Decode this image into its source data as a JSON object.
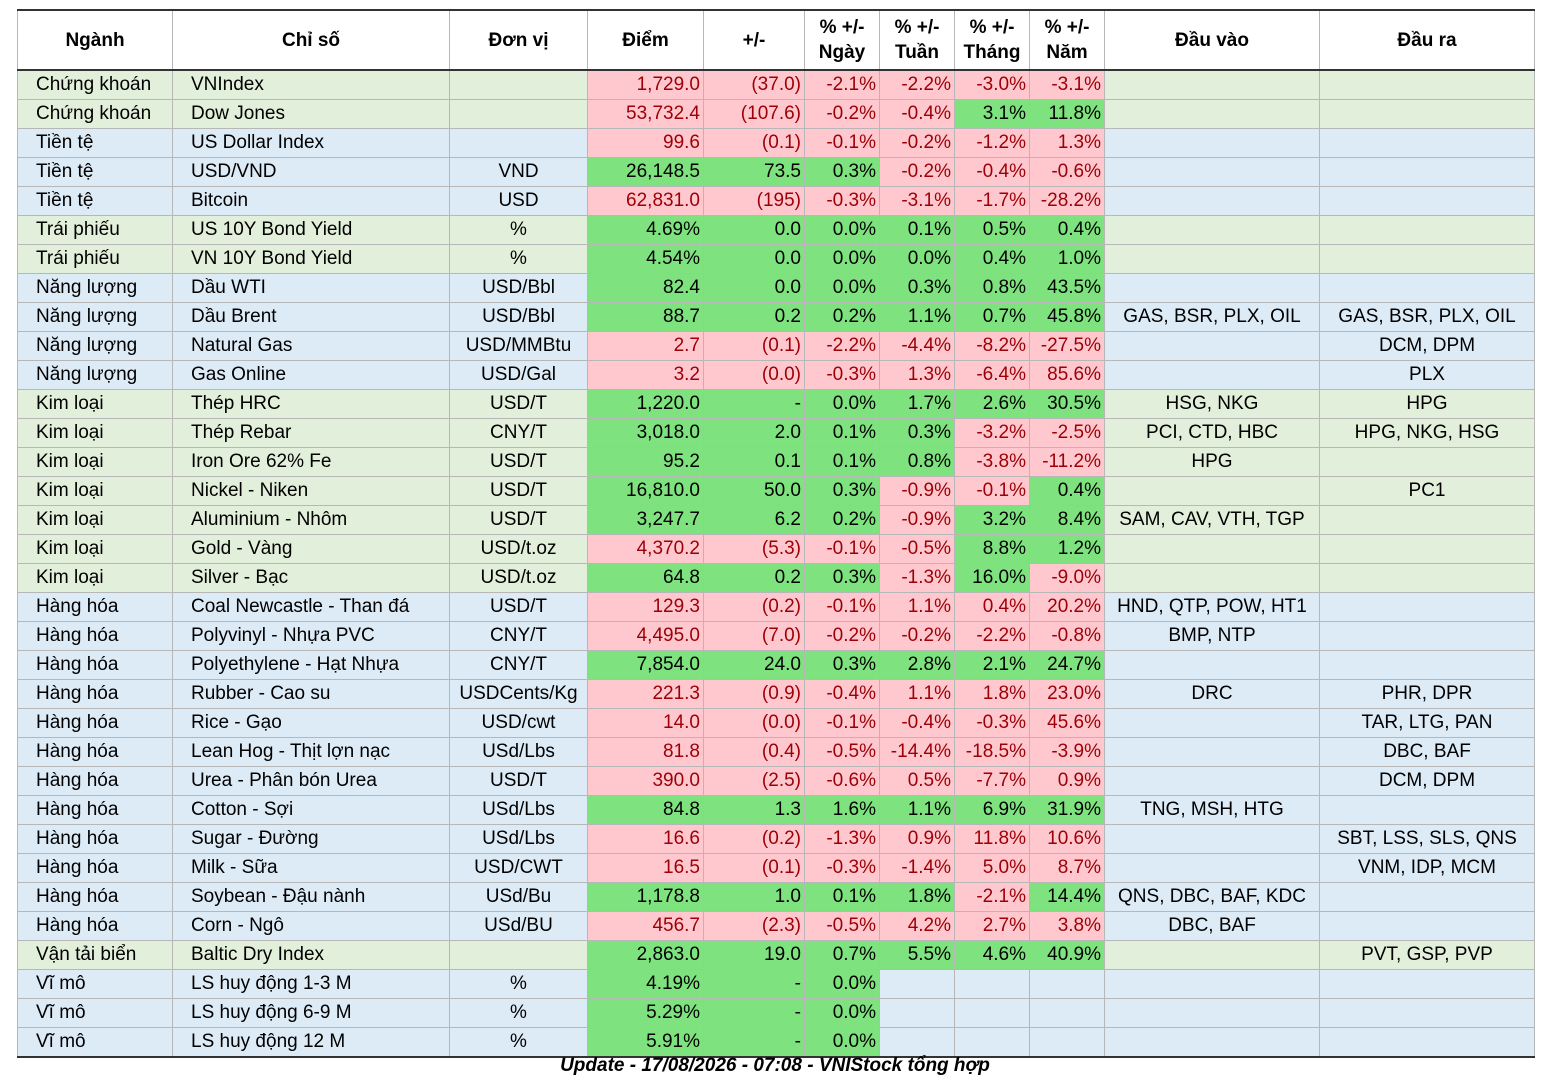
{
  "headers": [
    "Ngành",
    "Chỉ số",
    "Đơn vị",
    "Điểm",
    "+/-",
    "% +/- Ngày",
    "% +/- Tuần",
    "% +/- Tháng",
    "% +/- Năm",
    "Đầu vào",
    "Đầu ra"
  ],
  "colors": {
    "row_green": "#e2efda",
    "row_blue": "#ddebf7",
    "positive_fill": "#7ee37e",
    "negative_fill": "#ffc7ce",
    "negative_text": "#9c0006"
  },
  "rows": [
    {
      "sector": "Chứng khoán",
      "index": "VNIndex",
      "unit": "",
      "score": "1,729.0",
      "change": "(37.0)",
      "day": "-2.1%",
      "week": "-2.2%",
      "month": "-3.0%",
      "year": "-3.1%",
      "input": "",
      "output": "",
      "row": "green",
      "s": [
        "neg",
        "neg",
        "neg",
        "neg",
        "neg",
        "neg"
      ]
    },
    {
      "sector": "Chứng khoán",
      "index": "Dow Jones",
      "unit": "",
      "score": "53,732.4",
      "change": "(107.6)",
      "day": "-0.2%",
      "week": "-0.4%",
      "month": "3.1%",
      "year": "11.8%",
      "input": "",
      "output": "",
      "row": "green",
      "s": [
        "neg",
        "neg",
        "neg",
        "neg",
        "pos",
        "pos"
      ]
    },
    {
      "sector": "Tiền tệ",
      "index": "US Dollar Index",
      "unit": "",
      "score": "99.6",
      "change": "(0.1)",
      "day": "-0.1%",
      "week": "-0.2%",
      "month": "-1.2%",
      "year": "1.3%",
      "input": "",
      "output": "",
      "row": "blue",
      "s": [
        "neg",
        "neg",
        "neg",
        "neg",
        "neg",
        "neg"
      ]
    },
    {
      "sector": "Tiền tệ",
      "index": "USD/VND",
      "unit": "VND",
      "score": "26,148.5",
      "change": "73.5",
      "day": "0.3%",
      "week": "-0.2%",
      "month": "-0.4%",
      "year": "-0.6%",
      "input": "",
      "output": "",
      "row": "blue",
      "s": [
        "pos",
        "pos",
        "pos",
        "neg",
        "neg",
        "neg"
      ]
    },
    {
      "sector": "Tiền tệ",
      "index": "Bitcoin",
      "unit": "USD",
      "score": "62,831.0",
      "change": "(195)",
      "day": "-0.3%",
      "week": "-3.1%",
      "month": "-1.7%",
      "year": "-28.2%",
      "input": "",
      "output": "",
      "row": "blue",
      "s": [
        "neg",
        "neg",
        "neg",
        "neg",
        "neg",
        "neg"
      ]
    },
    {
      "sector": "Trái phiếu",
      "index": "US 10Y Bond Yield",
      "unit": "%",
      "score": "4.69%",
      "change": "0.0",
      "day": "0.0%",
      "week": "0.1%",
      "month": "0.5%",
      "year": "0.4%",
      "input": "",
      "output": "",
      "row": "green",
      "s": [
        "pos",
        "pos",
        "pos",
        "pos",
        "pos",
        "pos"
      ]
    },
    {
      "sector": "Trái phiếu",
      "index": "VN 10Y Bond Yield",
      "unit": "%",
      "score": "4.54%",
      "change": "0.0",
      "day": "0.0%",
      "week": "0.0%",
      "month": "0.4%",
      "year": "1.0%",
      "input": "",
      "output": "",
      "row": "green",
      "s": [
        "pos",
        "pos",
        "pos",
        "pos",
        "pos",
        "pos"
      ]
    },
    {
      "sector": "Năng lượng",
      "index": "Dầu WTI",
      "unit": "USD/Bbl",
      "score": "82.4",
      "change": "0.0",
      "day": "0.0%",
      "week": "0.3%",
      "month": "0.8%",
      "year": "43.5%",
      "input": "",
      "output": "",
      "row": "blue",
      "s": [
        "pos",
        "pos",
        "pos",
        "pos",
        "pos",
        "pos"
      ]
    },
    {
      "sector": "Năng lượng",
      "index": "Dầu Brent",
      "unit": "USD/Bbl",
      "score": "88.7",
      "change": "0.2",
      "day": "0.2%",
      "week": "1.1%",
      "month": "0.7%",
      "year": "45.8%",
      "input": "GAS, BSR, PLX, OIL",
      "output": "GAS, BSR, PLX, OIL",
      "row": "blue",
      "s": [
        "pos",
        "pos",
        "pos",
        "pos",
        "pos",
        "pos"
      ]
    },
    {
      "sector": "Năng lượng",
      "index": "Natural Gas",
      "unit": "USD/MMBtu",
      "score": "2.7",
      "change": "(0.1)",
      "day": "-2.2%",
      "week": "-4.4%",
      "month": "-8.2%",
      "year": "-27.5%",
      "input": "",
      "output": "DCM, DPM",
      "row": "blue",
      "s": [
        "neg",
        "neg",
        "neg",
        "neg",
        "neg",
        "neg"
      ]
    },
    {
      "sector": "Năng lượng",
      "index": "Gas Online",
      "unit": "USD/Gal",
      "score": "3.2",
      "change": "(0.0)",
      "day": "-0.3%",
      "week": "1.3%",
      "month": "-6.4%",
      "year": "85.6%",
      "input": "",
      "output": "PLX",
      "row": "blue",
      "s": [
        "neg",
        "neg",
        "neg",
        "neg",
        "neg",
        "neg"
      ]
    },
    {
      "sector": "Kim loại",
      "index": "Thép HRC",
      "unit": "USD/T",
      "score": "1,220.0",
      "change": "-",
      "day": "0.0%",
      "week": "1.7%",
      "month": "2.6%",
      "year": "30.5%",
      "input": "HSG, NKG",
      "output": "HPG",
      "row": "green",
      "s": [
        "pos",
        "pos",
        "pos",
        "pos",
        "pos",
        "pos"
      ]
    },
    {
      "sector": "Kim loại",
      "index": "Thép Rebar",
      "unit": "CNY/T",
      "score": "3,018.0",
      "change": "2.0",
      "day": "0.1%",
      "week": "0.3%",
      "month": "-3.2%",
      "year": "-2.5%",
      "input": "PCI, CTD, HBC",
      "output": "HPG, NKG, HSG",
      "row": "green",
      "s": [
        "pos",
        "pos",
        "pos",
        "pos",
        "neg",
        "neg"
      ]
    },
    {
      "sector": "Kim loại",
      "index": "Iron Ore 62% Fe",
      "unit": "USD/T",
      "score": "95.2",
      "change": "0.1",
      "day": "0.1%",
      "week": "0.8%",
      "month": "-3.8%",
      "year": "-11.2%",
      "input": "HPG",
      "output": "",
      "row": "green",
      "s": [
        "pos",
        "pos",
        "pos",
        "pos",
        "neg",
        "neg"
      ]
    },
    {
      "sector": "Kim loại",
      "index": "Nickel - Niken",
      "unit": "USD/T",
      "score": "16,810.0",
      "change": "50.0",
      "day": "0.3%",
      "week": "-0.9%",
      "month": "-0.1%",
      "year": "0.4%",
      "input": "",
      "output": "PC1",
      "row": "green",
      "s": [
        "pos",
        "pos",
        "pos",
        "neg",
        "neg",
        "pos"
      ]
    },
    {
      "sector": "Kim loại",
      "index": "Aluminium - Nhôm",
      "unit": "USD/T",
      "score": "3,247.7",
      "change": "6.2",
      "day": "0.2%",
      "week": "-0.9%",
      "month": "3.2%",
      "year": "8.4%",
      "input": "SAM, CAV, VTH, TGP",
      "output": "",
      "row": "green",
      "s": [
        "pos",
        "pos",
        "pos",
        "neg",
        "pos",
        "pos"
      ]
    },
    {
      "sector": "Kim loại",
      "index": "Gold - Vàng",
      "unit": "USD/t.oz",
      "score": "4,370.2",
      "change": "(5.3)",
      "day": "-0.1%",
      "week": "-0.5%",
      "month": "8.8%",
      "year": "1.2%",
      "input": "",
      "output": "",
      "row": "green",
      "s": [
        "neg",
        "neg",
        "neg",
        "neg",
        "pos",
        "pos"
      ]
    },
    {
      "sector": "Kim loại",
      "index": "Silver - Bạc",
      "unit": "USD/t.oz",
      "score": "64.8",
      "change": "0.2",
      "day": "0.3%",
      "week": "-1.3%",
      "month": "16.0%",
      "year": "-9.0%",
      "input": "",
      "output": "",
      "row": "green",
      "s": [
        "pos",
        "pos",
        "pos",
        "neg",
        "pos",
        "neg"
      ]
    },
    {
      "sector": "Hàng hóa",
      "index": "Coal Newcastle - Than đá",
      "unit": "USD/T",
      "score": "129.3",
      "change": "(0.2)",
      "day": "-0.1%",
      "week": "1.1%",
      "month": "0.4%",
      "year": "20.2%",
      "input": "HND, QTP, POW, HT1",
      "output": "",
      "row": "blue",
      "s": [
        "neg",
        "neg",
        "neg",
        "neg",
        "neg",
        "neg"
      ]
    },
    {
      "sector": "Hàng hóa",
      "index": "Polyvinyl - Nhựa PVC",
      "unit": "CNY/T",
      "score": "4,495.0",
      "change": "(7.0)",
      "day": "-0.2%",
      "week": "-0.2%",
      "month": "-2.2%",
      "year": "-0.8%",
      "input": "BMP, NTP",
      "output": "",
      "row": "blue",
      "s": [
        "neg",
        "neg",
        "neg",
        "neg",
        "neg",
        "neg"
      ]
    },
    {
      "sector": "Hàng hóa",
      "index": "Polyethylene - Hạt Nhựa",
      "unit": "CNY/T",
      "score": "7,854.0",
      "change": "24.0",
      "day": "0.3%",
      "week": "2.8%",
      "month": "2.1%",
      "year": "24.7%",
      "input": "",
      "output": "",
      "row": "blue",
      "s": [
        "pos",
        "pos",
        "pos",
        "pos",
        "pos",
        "pos"
      ]
    },
    {
      "sector": "Hàng hóa",
      "index": "Rubber - Cao su",
      "unit": "USDCents/Kg",
      "score": "221.3",
      "change": "(0.9)",
      "day": "-0.4%",
      "week": "1.1%",
      "month": "1.8%",
      "year": "23.0%",
      "input": "DRC",
      "output": "PHR, DPR",
      "row": "blue",
      "s": [
        "neg",
        "neg",
        "neg",
        "neg",
        "neg",
        "neg"
      ]
    },
    {
      "sector": "Hàng hóa",
      "index": "Rice - Gạo",
      "unit": "USD/cwt",
      "score": "14.0",
      "change": "(0.0)",
      "day": "-0.1%",
      "week": "-0.4%",
      "month": "-0.3%",
      "year": "45.6%",
      "input": "",
      "output": "TAR, LTG, PAN",
      "row": "blue",
      "s": [
        "neg",
        "neg",
        "neg",
        "neg",
        "neg",
        "neg"
      ]
    },
    {
      "sector": "Hàng hóa",
      "index": "Lean Hog - Thịt lợn nạc",
      "unit": "USd/Lbs",
      "score": "81.8",
      "change": "(0.4)",
      "day": "-0.5%",
      "week": "-14.4%",
      "month": "-18.5%",
      "year": "-3.9%",
      "input": "",
      "output": "DBC, BAF",
      "row": "blue",
      "s": [
        "neg",
        "neg",
        "neg",
        "neg",
        "neg",
        "neg"
      ]
    },
    {
      "sector": "Hàng hóa",
      "index": "Urea - Phân bón Urea",
      "unit": "USD/T",
      "score": "390.0",
      "change": "(2.5)",
      "day": "-0.6%",
      "week": "0.5%",
      "month": "-7.7%",
      "year": "0.9%",
      "input": "",
      "output": "DCM, DPM",
      "row": "blue",
      "s": [
        "neg",
        "neg",
        "neg",
        "neg",
        "neg",
        "neg"
      ]
    },
    {
      "sector": "Hàng hóa",
      "index": "Cotton - Sợi",
      "unit": "USd/Lbs",
      "score": "84.8",
      "change": "1.3",
      "day": "1.6%",
      "week": "1.1%",
      "month": "6.9%",
      "year": "31.9%",
      "input": "TNG, MSH, HTG",
      "output": "",
      "row": "blue",
      "s": [
        "pos",
        "pos",
        "pos",
        "pos",
        "pos",
        "pos"
      ]
    },
    {
      "sector": "Hàng hóa",
      "index": "Sugar - Đường",
      "unit": "USd/Lbs",
      "score": "16.6",
      "change": "(0.2)",
      "day": "-1.3%",
      "week": "0.9%",
      "month": "11.8%",
      "year": "10.6%",
      "input": "",
      "output": "SBT, LSS, SLS, QNS",
      "row": "blue",
      "s": [
        "neg",
        "neg",
        "neg",
        "neg",
        "neg",
        "neg"
      ]
    },
    {
      "sector": "Hàng hóa",
      "index": "Milk - Sữa",
      "unit": "USD/CWT",
      "score": "16.5",
      "change": "(0.1)",
      "day": "-0.3%",
      "week": "-1.4%",
      "month": "5.0%",
      "year": "8.7%",
      "input": "",
      "output": "VNM, IDP, MCM",
      "row": "blue",
      "s": [
        "neg",
        "neg",
        "neg",
        "neg",
        "neg",
        "neg"
      ]
    },
    {
      "sector": "Hàng hóa",
      "index": "Soybean - Đậu nành",
      "unit": "USd/Bu",
      "score": "1,178.8",
      "change": "1.0",
      "day": "0.1%",
      "week": "1.8%",
      "month": "-2.1%",
      "year": "14.4%",
      "input": "QNS, DBC, BAF, KDC",
      "output": "",
      "row": "blue",
      "s": [
        "pos",
        "pos",
        "pos",
        "pos",
        "neg",
        "pos"
      ]
    },
    {
      "sector": "Hàng hóa",
      "index": "Corn - Ngô",
      "unit": "USd/BU",
      "score": "456.7",
      "change": "(2.3)",
      "day": "-0.5%",
      "week": "4.2%",
      "month": "2.7%",
      "year": "3.8%",
      "input": "DBC, BAF",
      "output": "",
      "row": "blue",
      "s": [
        "neg",
        "neg",
        "neg",
        "neg",
        "neg",
        "neg"
      ]
    },
    {
      "sector": "Vận tải biển",
      "index": "Baltic Dry Index",
      "unit": "",
      "score": "2,863.0",
      "change": "19.0",
      "day": "0.7%",
      "week": "5.5%",
      "month": "4.6%",
      "year": "40.9%",
      "input": "",
      "output": "PVT, GSP, PVP",
      "row": "green",
      "s": [
        "pos",
        "pos",
        "pos",
        "pos",
        "pos",
        "pos"
      ]
    },
    {
      "sector": "Vĩ mô",
      "index": "LS huy động 1-3 M",
      "unit": "%",
      "score": "4.19%",
      "change": "-",
      "day": "0.0%",
      "week": "",
      "month": "",
      "year": "",
      "input": "",
      "output": "",
      "row": "blue",
      "s": [
        "pos",
        "pos",
        "pos",
        "pos",
        "pos",
        "pos"
      ]
    },
    {
      "sector": "Vĩ mô",
      "index": "LS huy động 6-9 M",
      "unit": "%",
      "score": "5.29%",
      "change": "-",
      "day": "0.0%",
      "week": "",
      "month": "",
      "year": "",
      "input": "",
      "output": "",
      "row": "blue",
      "s": [
        "pos",
        "pos",
        "pos",
        "pos",
        "pos",
        "pos"
      ]
    },
    {
      "sector": "Vĩ mô",
      "index": "LS huy động 12 M",
      "unit": "%",
      "score": "5.91%",
      "change": "-",
      "day": "0.0%",
      "week": "",
      "month": "",
      "year": "",
      "input": "",
      "output": "",
      "row": "blue",
      "s": [
        "pos",
        "pos",
        "pos",
        "pos",
        "pos",
        "pos"
      ]
    }
  ],
  "footer": "Update - 17/08/2026 - 07:08 - VNIStock tổng hợp"
}
